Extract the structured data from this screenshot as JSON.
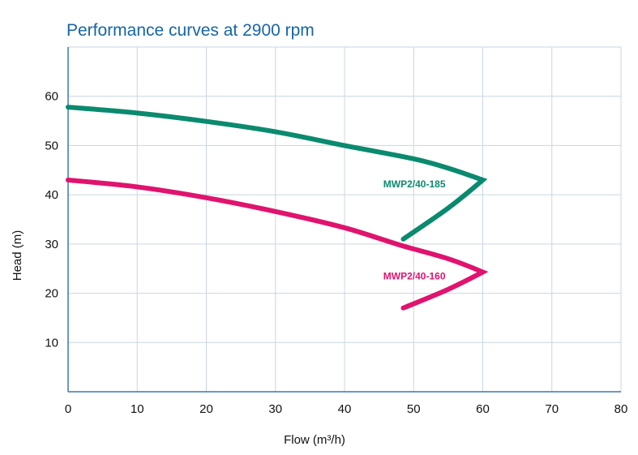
{
  "chart_data": {
    "type": "line",
    "title": "Performance curves at 2900 rpm",
    "xlabel": "Flow (m³/h)",
    "ylabel": "Head (m)",
    "xlim": [
      0,
      80
    ],
    "ylim": [
      0,
      70
    ],
    "x_ticks": [
      "0",
      "10",
      "20",
      "30",
      "40",
      "50",
      "60",
      "70",
      "80"
    ],
    "y_ticks": [
      "10",
      "20",
      "30",
      "40",
      "50",
      "60"
    ],
    "grid": true,
    "series": [
      {
        "name": "MWP2/40-185",
        "color": "#0a8a6e",
        "x": [
          0,
          10,
          20,
          30,
          40,
          50,
          55,
          60,
          55,
          48.5
        ],
        "y": [
          57.8,
          56.6,
          54.9,
          52.8,
          50.0,
          47.3,
          45.4,
          43.0,
          37.3,
          31.0
        ]
      },
      {
        "name": "MWP2/40-160",
        "color": "#e0136e",
        "x": [
          0,
          10,
          20,
          30,
          40,
          48,
          55,
          60,
          55,
          48.5
        ],
        "y": [
          43.0,
          41.6,
          39.4,
          36.6,
          33.3,
          29.8,
          27.0,
          24.3,
          20.8,
          17.0
        ]
      }
    ]
  }
}
